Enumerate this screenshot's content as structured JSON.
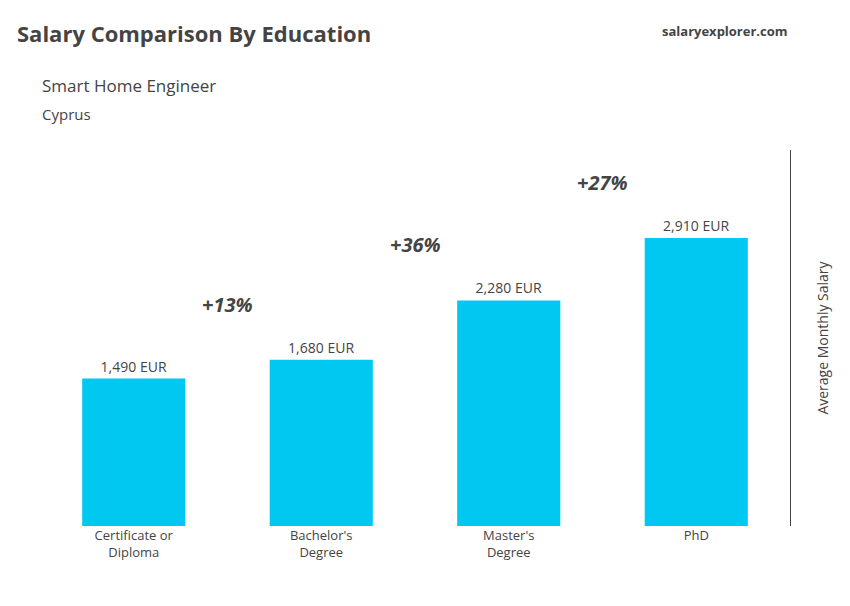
{
  "chart_data": {
    "type": "bar",
    "title": "Salary Comparison By Education",
    "subtitle": [
      "Smart Home Engineer",
      "Cyprus"
    ],
    "ylabel": "Average Monthly Salary",
    "categories": [
      "Certificate or\nDiploma",
      "Bachelor's\nDegree",
      "Master's\nDegree",
      "PhD"
    ],
    "values": [
      1490,
      1680,
      2280,
      2910
    ],
    "value_labels": [
      "1,490 EUR",
      "1,680 EUR",
      "2,280 EUR",
      "2,910 EUR"
    ],
    "data_labels": true,
    "color": "#00c8f0",
    "ylim": [
      0,
      3800
    ],
    "grid": false,
    "tick_labels": "x",
    "annotations": [
      "+13%",
      "+36%",
      "+27%",
      "salaryexplorer.com"
    ]
  }
}
